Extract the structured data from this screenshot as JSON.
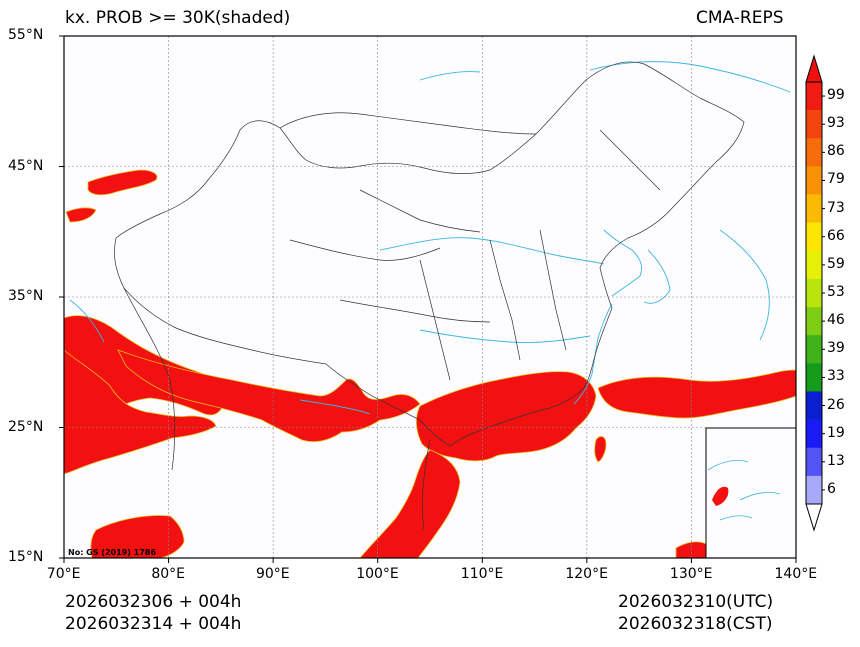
{
  "header": {
    "title": "kx. PROB >= 30K(shaded)",
    "model": "CMA-REPS"
  },
  "axes": {
    "lat_labels": [
      "55°N",
      "45°N",
      "35°N",
      "25°N",
      "15°N"
    ],
    "lon_labels": [
      "70°E",
      "80°E",
      "90°E",
      "100°E",
      "110°E",
      "120°E",
      "130°E",
      "140°E"
    ],
    "lat_values": [
      55,
      45,
      35,
      25,
      15
    ],
    "lon_values": [
      70,
      80,
      90,
      100,
      110,
      120,
      130,
      140
    ]
  },
  "map_note": "No: GS (2019) 1786",
  "colorbar": {
    "labels": [
      "99",
      "93",
      "86",
      "79",
      "73",
      "66",
      "59",
      "53",
      "46",
      "39",
      "33",
      "26",
      "19",
      "13",
      "6"
    ],
    "colors": [
      "#f21b12",
      "#f3460f",
      "#f66c0a",
      "#f99205",
      "#fbbb02",
      "#fde600",
      "#e6f007",
      "#b9e50f",
      "#7fce16",
      "#3fb21a",
      "#149c1a",
      "#0a1fd0",
      "#1a1af6",
      "#5454f5",
      "#a8a8f8"
    ],
    "top_arrow_color": "#f01010",
    "bottom_arrow_color": "#ffffff"
  },
  "footer": {
    "init_utc": "2026032306  +  004h",
    "init_cst": "2026032314  +  004h",
    "valid_utc": "2026032310(UTC)",
    "valid_cst": "2026032318(CST)"
  },
  "colors": {
    "shade": "#f21010",
    "river": "#3bb6e0",
    "border": "#333333",
    "background": "#fdfcfe"
  }
}
